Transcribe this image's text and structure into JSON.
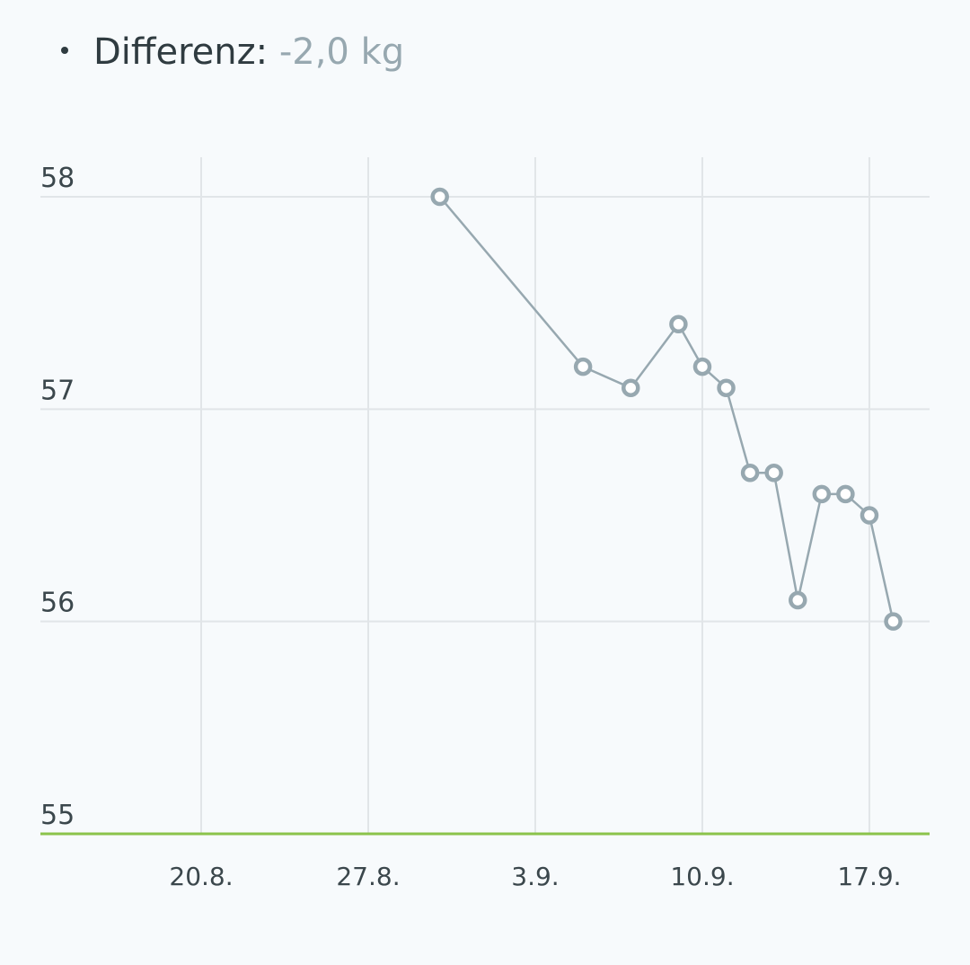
{
  "stats": {
    "label": "Differenz:",
    "value": "-2,0 kg",
    "value_color": "#97a8b0"
  },
  "chart_data": {
    "type": "line",
    "x_unit": "date",
    "x": [
      "2023-08-30",
      "2023-09-05",
      "2023-09-07",
      "2023-09-09",
      "2023-09-10",
      "2023-09-11",
      "2023-09-12",
      "2023-09-13",
      "2023-09-14",
      "2023-09-15",
      "2023-09-16",
      "2023-09-17",
      "2023-09-18"
    ],
    "series": [
      {
        "values": [
          58.0,
          57.2,
          57.1,
          57.4,
          57.2,
          57.1,
          56.7,
          56.7,
          56.1,
          56.6,
          56.6,
          56.5,
          56.0
        ],
        "color": "#97a8b0"
      }
    ],
    "y_ticks": [
      "58",
      "57",
      "56",
      "55"
    ],
    "x_ticks": [
      "20.8.",
      "27.8.",
      "3.9.",
      "10.9.",
      "17.9."
    ],
    "ylim": [
      55,
      58
    ],
    "target_line": {
      "value": 55,
      "color": "#8bc34a"
    },
    "grid": true,
    "legend": false
  }
}
